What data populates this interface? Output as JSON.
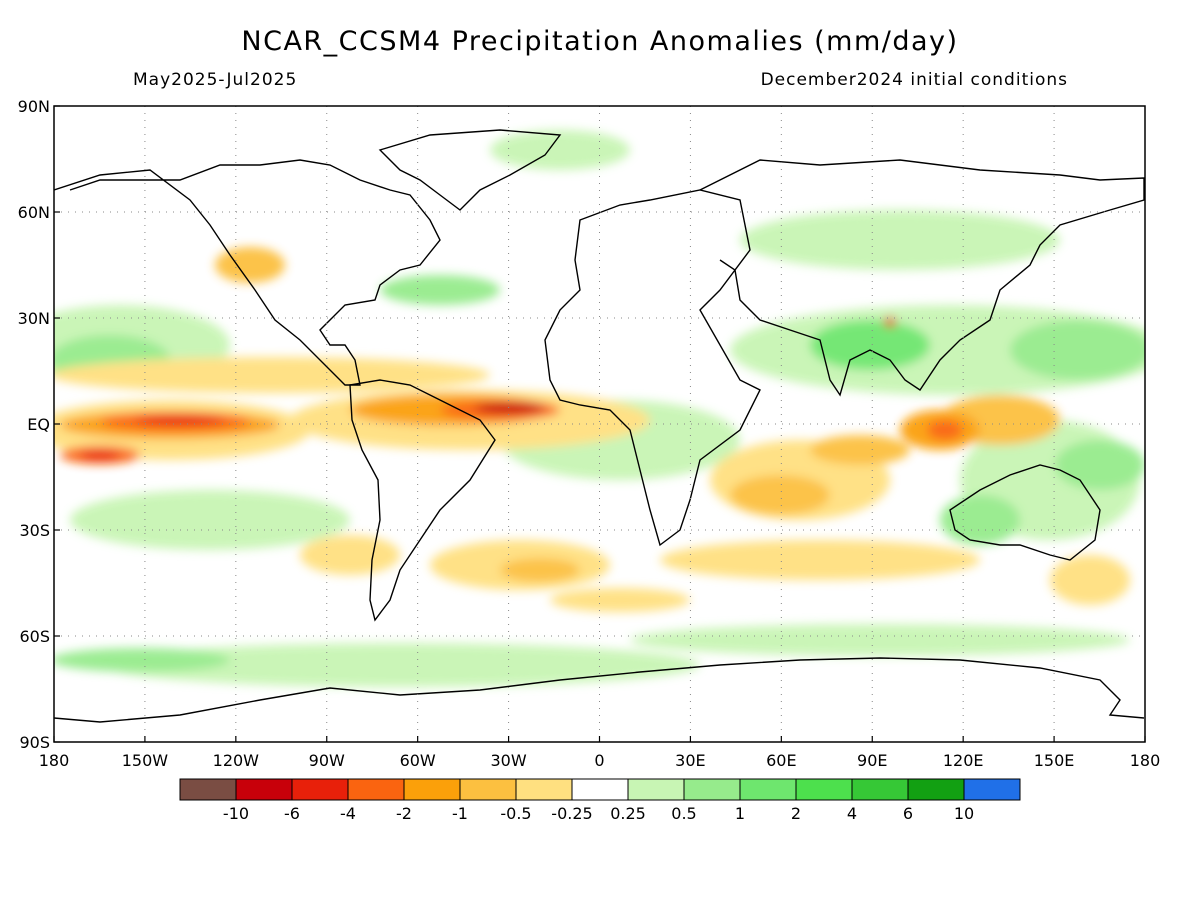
{
  "title": "NCAR_CCSM4 Precipitation Anomalies (mm/day)",
  "period": "May2025-Jul2025",
  "initial_conditions": "December2024 initial conditions",
  "map": {
    "projection": "cylindrical equidistant",
    "lon_range": [
      -180,
      180
    ],
    "lat_range": [
      -90,
      90
    ],
    "grid": "dotted",
    "x_tick_labels": [
      "180",
      "150W",
      "120W",
      "90W",
      "60W",
      "30W",
      "0",
      "30E",
      "60E",
      "90E",
      "120E",
      "150E",
      "180"
    ],
    "x_tick_lons": [
      -180,
      -150,
      -120,
      -90,
      -60,
      -30,
      0,
      30,
      60,
      90,
      120,
      150,
      180
    ],
    "y_tick_labels": [
      "90N",
      "60N",
      "30N",
      "EQ",
      "30S",
      "60S",
      "90S"
    ],
    "y_tick_lats": [
      90,
      60,
      30,
      0,
      -30,
      -60,
      -90
    ]
  },
  "colorbar": {
    "colors": [
      "#7a4d43",
      "#c8000a",
      "#e8200a",
      "#fa6410",
      "#fba00a",
      "#fcc040",
      "#ffe080",
      "#ffffff",
      "#c8f5b4",
      "#96eb8c",
      "#6ee66e",
      "#4de04d",
      "#36c836",
      "#12a012",
      "#2070e8"
    ],
    "labels": [
      "-10",
      "-6",
      "-4",
      "-2",
      "-1",
      "-0.5",
      "-0.25",
      "0.25",
      "0.5",
      "1",
      "2",
      "4",
      "6",
      "10"
    ]
  }
}
